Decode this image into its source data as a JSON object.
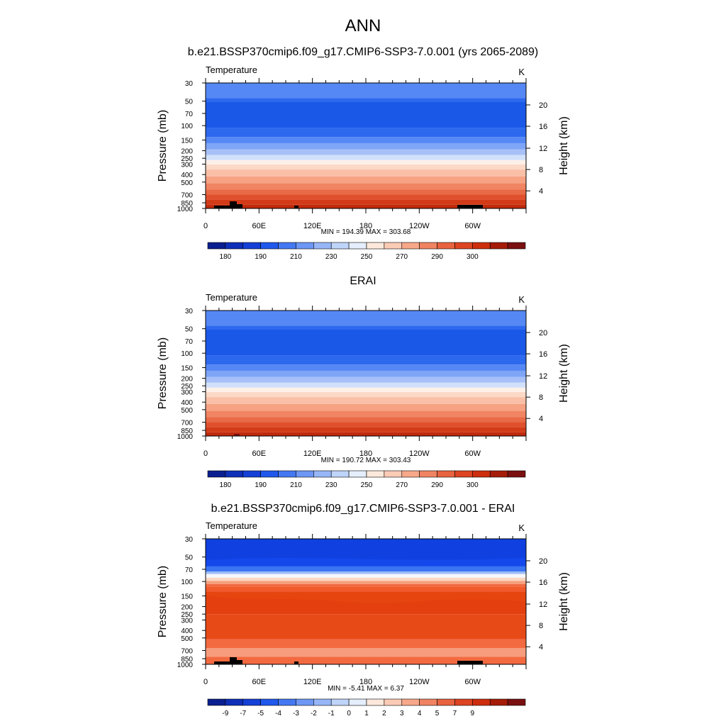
{
  "figure": {
    "title": "ANN"
  },
  "chart_data": [
    {
      "type": "heatmap",
      "title": "b.e21.BSSP370cmip6.f09_g17.CMIP6-SSP3-7.0.001 (yrs 2065-2089)",
      "left_label": "Temperature",
      "units": "K",
      "ylabel": "Pressure (mb)",
      "ylabel_right": "Height (km)",
      "x_ticks": [
        "0",
        "60E",
        "120E",
        "180",
        "120W",
        "60W"
      ],
      "y_ticks": [
        "30",
        "50",
        "70",
        "100",
        "150",
        "200",
        "250",
        "300",
        "400",
        "500",
        "700",
        "850",
        "1000"
      ],
      "y_ticks_right": [
        "20",
        "16",
        "12",
        "8",
        "4"
      ],
      "stats": "MIN = 194.39  MAX = 303.68",
      "colorbar_labels": [
        "180",
        "190",
        "210",
        "230",
        "250",
        "270",
        "290",
        "300"
      ],
      "level_colors": [
        "#ffd2bd",
        "#fcb698",
        "#f79a77",
        "#f07a57",
        "#e6553a",
        "#d63a18",
        "#c62a08",
        "#b21e06"
      ]
    },
    {
      "type": "heatmap",
      "title": "ERAI",
      "left_label": "Temperature",
      "units": "K",
      "ylabel": "Pressure (mb)",
      "ylabel_right": "Height (km)",
      "x_ticks": [
        "0",
        "60E",
        "120E",
        "180",
        "120W",
        "60W"
      ],
      "y_ticks": [
        "30",
        "50",
        "70",
        "100",
        "150",
        "200",
        "250",
        "300",
        "400",
        "500",
        "700",
        "850",
        "1000"
      ],
      "y_ticks_right": [
        "20",
        "16",
        "12",
        "8",
        "4"
      ],
      "stats": "MIN = 190.72  MAX = 303.43",
      "colorbar_labels": [
        "180",
        "190",
        "210",
        "230",
        "250",
        "270",
        "290",
        "300"
      ],
      "level_colors": [
        "#ffd2bd",
        "#fcb698",
        "#f79a77",
        "#f07a57",
        "#e6553a",
        "#d63a18",
        "#c62a08",
        "#b21e06"
      ]
    },
    {
      "type": "heatmap",
      "title": "b.e21.BSSP370cmip6.f09_g17.CMIP6-SSP3-7.0.001 - ERAI",
      "left_label": "Temperature",
      "units": "K",
      "ylabel": "Pressure (mb)",
      "ylabel_right": "Height (km)",
      "x_ticks": [
        "0",
        "60E",
        "120E",
        "180",
        "120W",
        "60W"
      ],
      "y_ticks": [
        "30",
        "50",
        "70",
        "100",
        "150",
        "200",
        "250",
        "300",
        "400",
        "500",
        "700",
        "850",
        "1000"
      ],
      "y_ticks_right": [
        "20",
        "16",
        "12",
        "8",
        "4"
      ],
      "stats": "MIN = -5.41  MAX =  6.37",
      "colorbar_labels": [
        "-9",
        "-7",
        "-5",
        "-4",
        "-3",
        "-2",
        "-1",
        "0",
        "1",
        "2",
        "3",
        "4",
        "5",
        "7",
        "9"
      ],
      "level_colors": [
        "#1448ec",
        "#2a64f2",
        "#ffffff",
        "#fcb698",
        "#f06a40",
        "#e23c10",
        "#e23c10",
        "#f36a40",
        "#fcb698"
      ]
    }
  ],
  "colorbar_colors": [
    "#0a1f8f",
    "#0e2fb8",
    "#1440d6",
    "#2058ec",
    "#4478f2",
    "#6d97f5",
    "#97b6f7",
    "#bfd4f9",
    "#e4eefc",
    "#fde9dc",
    "#fbcbb5",
    "#f7a889",
    "#f08462",
    "#e8633f",
    "#dd4422",
    "#cd2e0e",
    "#a51c08",
    "#7a1010"
  ]
}
